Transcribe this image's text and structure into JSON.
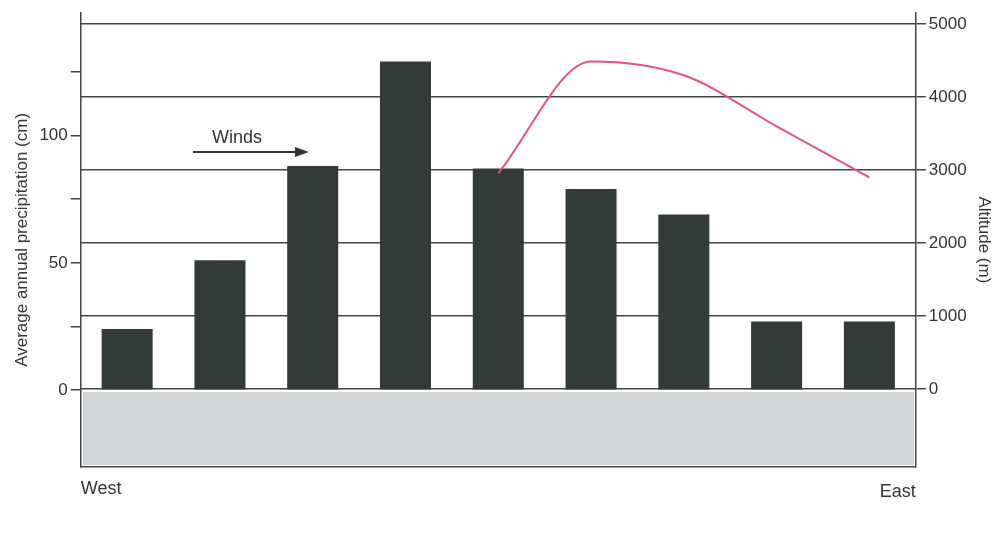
{
  "chart_data": {
    "type": "bar",
    "ylabel": "Average annual precipitation (cm)",
    "y2label": "Altitude (m)",
    "categories": [
      null,
      null,
      null,
      null,
      null,
      null,
      null,
      null,
      null
    ],
    "series": [
      {
        "color": "#333a38",
        "values": [
          24,
          51,
          88,
          129,
          87,
          79,
          69,
          27,
          27
        ]
      },
      {
        "type": "line",
        "axis": "y2",
        "color": "#e8508a",
        "values": [
          null,
          null,
          null,
          null,
          2960,
          4490,
          4300,
          3600,
          2900
        ]
      }
    ],
    "ylim": [
      -30,
      148
    ],
    "yticks": [
      0,
      {
        "value": 25,
        "label": null
      },
      50,
      {
        "value": 75,
        "label": null
      },
      100,
      {
        "value": 125,
        "label": null
      }
    ],
    "y2lim": [
      -1060,
      5150
    ],
    "y2ticks": [
      0,
      1000,
      2000,
      3000,
      4000,
      5000
    ],
    "grid": "y2",
    "legend": false,
    "marker": "none",
    "line_style": "solid",
    "annotations": [
      "Winds",
      "West",
      "East"
    ]
  }
}
